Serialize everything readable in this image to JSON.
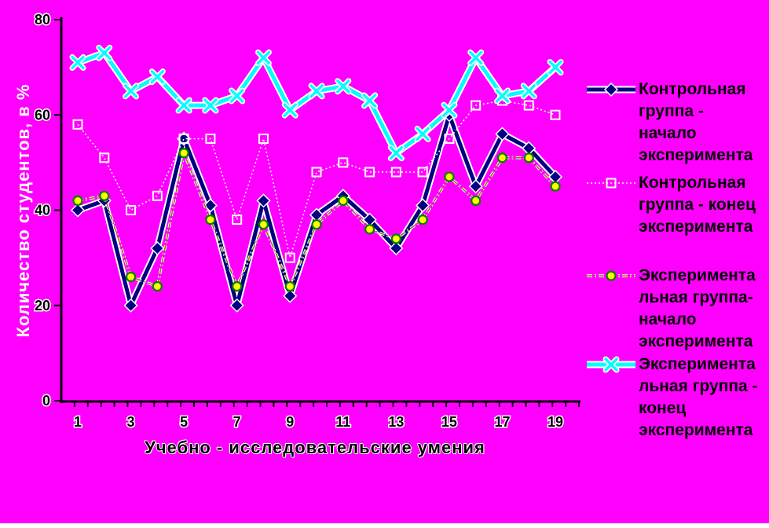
{
  "background_color": "#FF00FF",
  "chart_data": {
    "type": "line",
    "title": "",
    "xlabel": "Учебно - исследовательские умения",
    "ylabel": "Количество студентов, в %",
    "x": [
      1,
      2,
      3,
      4,
      5,
      6,
      7,
      8,
      9,
      10,
      11,
      12,
      13,
      14,
      15,
      16,
      17,
      18,
      19
    ],
    "x_tick_labels": [
      "1",
      "3",
      "5",
      "7",
      "9",
      "11",
      "13",
      "15",
      "17",
      "19"
    ],
    "yticks": [
      0,
      20,
      40,
      60,
      80
    ],
    "ylim": [
      0,
      80
    ],
    "grid": false,
    "legend_position": "right",
    "series": [
      {
        "name": "Контрольная группа - начало эксперимента",
        "legend_text": "Контрольная\nгруппа -\nначало\nэксперимента",
        "color": "#000080",
        "marker": "diamond",
        "line_style": "solid-thick",
        "values": [
          40,
          42,
          20,
          32,
          55,
          41,
          20,
          42,
          22,
          39,
          43,
          38,
          32,
          41,
          60,
          45,
          56,
          53,
          47
        ]
      },
      {
        "name": "Контрольная группа - конец эксперимента",
        "legend_text": "Контрольная\nгруппа - конец\nэксперимента",
        "color": "#FFFFFF",
        "marker": "open-square",
        "line_style": "dotted",
        "values": [
          58,
          51,
          40,
          43,
          55,
          55,
          38,
          55,
          30,
          48,
          50,
          48,
          48,
          48,
          55,
          62,
          63,
          62,
          60
        ]
      },
      {
        "name": "Экспериментальная группа- начало эксперимента",
        "legend_text": "Эксперимента\nльная группа-\nначало\nэксперимента",
        "color": "#808000",
        "marker": "circle",
        "marker_fill": "#FFFF00",
        "marker_ring": "#008000",
        "line_style": "dash-dot",
        "values": [
          42,
          43,
          26,
          24,
          52,
          38,
          24,
          37,
          24,
          37,
          42,
          36,
          34,
          38,
          47,
          42,
          51,
          51,
          45
        ]
      },
      {
        "name": "Экспериментальная группа - конец эксперимента",
        "legend_text": "Эксперимента\nльная группа -\nконец\nэксперимента",
        "color": "#00FFFF",
        "marker": "x",
        "line_style": "solid-thick",
        "values": [
          71,
          73,
          65,
          68,
          62,
          62,
          64,
          72,
          61,
          65,
          66,
          63,
          52,
          56,
          61,
          72,
          64,
          65,
          70
        ]
      }
    ]
  },
  "axis_colors": {
    "axis_line": "#000000",
    "tick_label": "#000000",
    "tick_label_halo": "#FFFFFF"
  }
}
